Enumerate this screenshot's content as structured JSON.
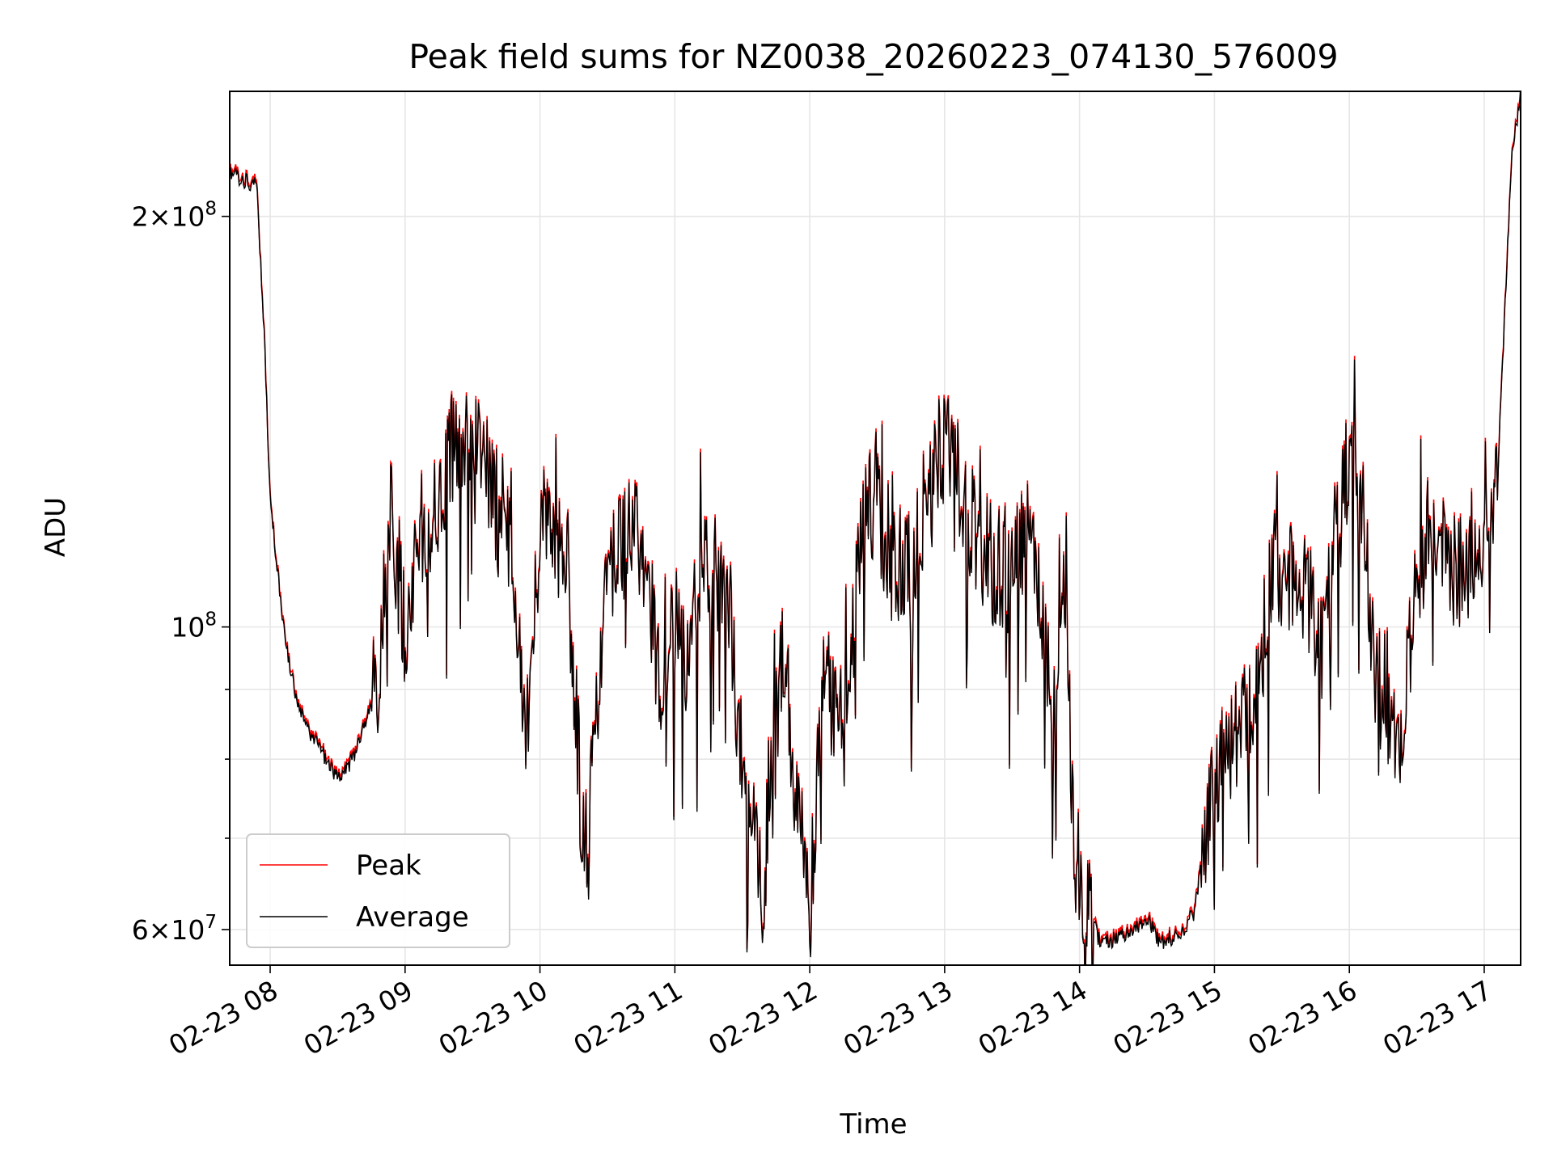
{
  "chart_data": {
    "type": "line",
    "title": "Peak field sums for NZ0038_20260223_074130_576009",
    "xlabel": "Time",
    "ylabel": "ADU",
    "yscale": "log",
    "grid": true,
    "legend_position": "lower-left",
    "x_range_hours": [
      7.7,
      17.27
    ],
    "ylim": [
      56500000,
      247000000
    ],
    "x_ticks": [
      {
        "label": "02-23 08",
        "hour": 8
      },
      {
        "label": "02-23 09",
        "hour": 9
      },
      {
        "label": "02-23 10",
        "hour": 10
      },
      {
        "label": "02-23 11",
        "hour": 11
      },
      {
        "label": "02-23 12",
        "hour": 12
      },
      {
        "label": "02-23 13",
        "hour": 13
      },
      {
        "label": "02-23 14",
        "hour": 14
      },
      {
        "label": "02-23 15",
        "hour": 15
      },
      {
        "label": "02-23 16",
        "hour": 16
      },
      {
        "label": "02-23 17",
        "hour": 17
      }
    ],
    "y_major_ticks": [
      {
        "value": 60000000,
        "mantissa": "6",
        "exponent": "7",
        "times": "×",
        "base": "10"
      },
      {
        "value": 100000000,
        "mantissa": "",
        "exponent": "8",
        "times": "",
        "base": "10"
      },
      {
        "value": 200000000,
        "mantissa": "2",
        "exponent": "8",
        "times": "×",
        "base": "10"
      }
    ],
    "y_minor_ticks": [
      70000000,
      80000000,
      90000000
    ],
    "series": [
      {
        "name": "Peak",
        "color": "#ff0000",
        "anchors": [
          [
            7.7,
            217000000
          ],
          [
            7.8,
            214000000
          ],
          [
            7.9,
            212000000
          ],
          [
            7.95,
            170000000
          ],
          [
            8.0,
            125000000
          ],
          [
            8.1,
            100000000
          ],
          [
            8.2,
            88000000
          ],
          [
            8.3,
            84000000
          ],
          [
            8.4,
            81000000
          ],
          [
            8.5,
            78000000
          ],
          [
            8.6,
            80000000
          ],
          [
            8.7,
            85000000
          ],
          [
            8.8,
            92000000
          ],
          [
            8.9,
            122000000
          ],
          [
            9.0,
            100000000
          ],
          [
            9.1,
            118000000
          ],
          [
            9.25,
            125000000
          ],
          [
            9.4,
            138000000
          ],
          [
            9.5,
            142000000
          ],
          [
            9.6,
            132000000
          ],
          [
            9.7,
            118000000
          ],
          [
            9.8,
            115000000
          ],
          [
            9.9,
            82000000
          ],
          [
            10.0,
            120000000
          ],
          [
            10.1,
            118000000
          ],
          [
            10.2,
            115000000
          ],
          [
            10.3,
            75000000
          ],
          [
            10.35,
            68000000
          ],
          [
            10.45,
            95000000
          ],
          [
            10.55,
            115000000
          ],
          [
            10.7,
            118000000
          ],
          [
            10.8,
            108000000
          ],
          [
            10.9,
            88000000
          ],
          [
            11.0,
            102000000
          ],
          [
            11.1,
            95000000
          ],
          [
            11.2,
            115000000
          ],
          [
            11.3,
            110000000
          ],
          [
            11.4,
            105000000
          ],
          [
            11.5,
            78000000
          ],
          [
            11.65,
            65000000
          ],
          [
            11.8,
            96000000
          ],
          [
            11.9,
            78000000
          ],
          [
            12.0,
            61000000
          ],
          [
            12.1,
            95000000
          ],
          [
            12.2,
            85000000
          ],
          [
            12.3,
            95000000
          ],
          [
            12.4,
            120000000
          ],
          [
            12.5,
            125000000
          ],
          [
            12.6,
            112000000
          ],
          [
            12.75,
            110000000
          ],
          [
            12.9,
            130000000
          ],
          [
            13.0,
            136000000
          ],
          [
            13.1,
            128000000
          ],
          [
            13.2,
            120000000
          ],
          [
            13.35,
            112000000
          ],
          [
            13.5,
            108000000
          ],
          [
            13.6,
            118000000
          ],
          [
            13.7,
            108000000
          ],
          [
            13.8,
            85000000
          ],
          [
            13.9,
            112000000
          ],
          [
            13.95,
            70000000
          ],
          [
            14.05,
            64000000
          ],
          [
            14.15,
            59000000
          ],
          [
            14.3,
            59500000
          ],
          [
            14.5,
            61500000
          ],
          [
            14.6,
            59000000
          ],
          [
            14.75,
            60000000
          ],
          [
            14.85,
            62000000
          ],
          [
            14.95,
            72000000
          ],
          [
            15.05,
            82000000
          ],
          [
            15.2,
            83000000
          ],
          [
            15.35,
            96000000
          ],
          [
            15.45,
            112000000
          ],
          [
            15.6,
            108000000
          ],
          [
            15.7,
            105000000
          ],
          [
            15.8,
            95000000
          ],
          [
            15.9,
            118000000
          ],
          [
            16.0,
            132000000
          ],
          [
            16.1,
            120000000
          ],
          [
            16.2,
            92000000
          ],
          [
            16.3,
            86000000
          ],
          [
            16.4,
            84000000
          ],
          [
            16.5,
            110000000
          ],
          [
            16.6,
            120000000
          ],
          [
            16.75,
            112000000
          ],
          [
            16.85,
            110000000
          ],
          [
            16.95,
            118000000
          ],
          [
            17.0,
            112000000
          ],
          [
            17.1,
            130000000
          ],
          [
            17.2,
            220000000
          ],
          [
            17.27,
            248000000
          ]
        ]
      },
      {
        "name": "Average",
        "color": "#000000",
        "anchors": [
          [
            7.7,
            216500000
          ],
          [
            7.8,
            213500000
          ],
          [
            7.9,
            211500000
          ],
          [
            7.95,
            169500000
          ],
          [
            8.0,
            124500000
          ],
          [
            8.1,
            99600000
          ],
          [
            8.2,
            87600000
          ],
          [
            8.3,
            83600000
          ],
          [
            8.4,
            80600000
          ],
          [
            8.5,
            77600000
          ],
          [
            8.6,
            79600000
          ],
          [
            8.7,
            84600000
          ],
          [
            8.8,
            91600000
          ],
          [
            8.9,
            121500000
          ],
          [
            9.0,
            99600000
          ],
          [
            9.1,
            117500000
          ],
          [
            9.25,
            124500000
          ],
          [
            9.4,
            137500000
          ],
          [
            9.5,
            141500000
          ],
          [
            9.6,
            131500000
          ],
          [
            9.7,
            117500000
          ],
          [
            9.8,
            114500000
          ],
          [
            9.9,
            81600000
          ],
          [
            10.0,
            119500000
          ],
          [
            10.1,
            117500000
          ],
          [
            10.2,
            114500000
          ],
          [
            10.3,
            74600000
          ],
          [
            10.35,
            67600000
          ],
          [
            10.45,
            94600000
          ],
          [
            10.55,
            114500000
          ],
          [
            10.7,
            117500000
          ],
          [
            10.8,
            107500000
          ],
          [
            10.9,
            87600000
          ],
          [
            11.0,
            101500000
          ],
          [
            11.1,
            94600000
          ],
          [
            11.2,
            114500000
          ],
          [
            11.3,
            109500000
          ],
          [
            11.4,
            104500000
          ],
          [
            11.5,
            77600000
          ],
          [
            11.65,
            64600000
          ],
          [
            11.8,
            95600000
          ],
          [
            11.9,
            77600000
          ],
          [
            12.0,
            60600000
          ],
          [
            12.1,
            94600000
          ],
          [
            12.2,
            84600000
          ],
          [
            12.3,
            94600000
          ],
          [
            12.4,
            119500000
          ],
          [
            12.5,
            124500000
          ],
          [
            12.6,
            111500000
          ],
          [
            12.75,
            109500000
          ],
          [
            12.9,
            129500000
          ],
          [
            13.0,
            135500000
          ],
          [
            13.1,
            127500000
          ],
          [
            13.2,
            119500000
          ],
          [
            13.35,
            111500000
          ],
          [
            13.5,
            107500000
          ],
          [
            13.6,
            117500000
          ],
          [
            13.7,
            107500000
          ],
          [
            13.8,
            84600000
          ],
          [
            13.9,
            111500000
          ],
          [
            13.95,
            69600000
          ],
          [
            14.05,
            63600000
          ],
          [
            14.15,
            58700000
          ],
          [
            14.3,
            59200000
          ],
          [
            14.5,
            61200000
          ],
          [
            14.6,
            58700000
          ],
          [
            14.75,
            59700000
          ],
          [
            14.85,
            61700000
          ],
          [
            14.95,
            71600000
          ],
          [
            15.05,
            81600000
          ],
          [
            15.2,
            82600000
          ],
          [
            15.35,
            95600000
          ],
          [
            15.45,
            111500000
          ],
          [
            15.6,
            107500000
          ],
          [
            15.7,
            104500000
          ],
          [
            15.8,
            94600000
          ],
          [
            15.9,
            117500000
          ],
          [
            16.0,
            131500000
          ],
          [
            16.1,
            119500000
          ],
          [
            16.2,
            91600000
          ],
          [
            16.3,
            85600000
          ],
          [
            16.4,
            83600000
          ],
          [
            16.5,
            109500000
          ],
          [
            16.6,
            119500000
          ],
          [
            16.75,
            111500000
          ],
          [
            16.85,
            109500000
          ],
          [
            16.95,
            117500000
          ],
          [
            17.0,
            111500000
          ],
          [
            17.1,
            129500000
          ],
          [
            17.2,
            219000000
          ],
          [
            17.27,
            247500000
          ]
        ]
      }
    ]
  }
}
